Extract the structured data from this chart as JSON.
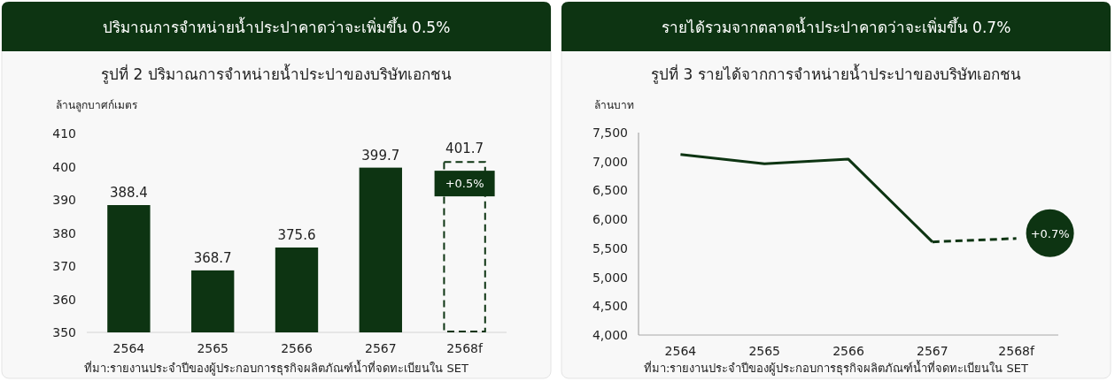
{
  "chart_data": [
    {
      "type": "bar",
      "title": "ปริมาณการจำหน่ายน้ำประปาคาดว่าจะเพิ่มขึ้น 0.5%",
      "subtitle": "รูปที่ 2 ปริมาณการจำหน่ายน้ำประปาของบริษัทเอกชน",
      "ylabel": "ล้านลูกบาศก์เมตร",
      "categories": [
        "2564",
        "2565",
        "2566",
        "2567",
        "2568f"
      ],
      "stacked": true,
      "series": [
        {
          "color": "#0d3412",
          "values": [
            388.4,
            368.7,
            375.6,
            399.7,
            null
          ]
        },
        {
          "color": "#0d3412",
          "line_style": "dashed",
          "values": [
            null,
            null,
            null,
            null,
            401.7
          ]
        }
      ],
      "ylim": [
        350,
        410
      ],
      "yticks": [
        350,
        360,
        370,
        380,
        390,
        400,
        410
      ],
      "data_labels": true,
      "annotations": [
        "+0.5%",
        "ที่มา:รายงานประจำปีของผู้ประกอบการธุรกิจผลิตภัณฑ์น้ำที่จดทะเบียนใน SET"
      ]
    },
    {
      "type": "line",
      "title": "รายได้รวมจากตลาดน้ำประปาคาดว่าจะเพิ่มขึ้น 0.7%",
      "subtitle": "รูปที่ 3 รายได้จากการจำหน่ายน้ำประปาของบริษัทเอกชน",
      "ylabel": "ล้านบาท",
      "categories": [
        "2564",
        "2565",
        "2566",
        "2567",
        "2568f"
      ],
      "series": [
        {
          "color": "#0d3412",
          "values": [
            7120,
            6960,
            7040,
            5610,
            null
          ]
        },
        {
          "color": "#0d3412",
          "line_style": "dashed",
          "values": [
            null,
            null,
            null,
            5610,
            5670
          ]
        }
      ],
      "ylim": [
        4000,
        7500
      ],
      "yticks": [
        {
          "value": 4000,
          "label": "4,000"
        },
        {
          "value": 4500,
          "label": "4,500"
        },
        {
          "value": 5000,
          "label": "5,000"
        },
        {
          "value": 5500,
          "label": "5,500"
        },
        {
          "value": 6000,
          "label": "6,000"
        },
        {
          "value": 6500,
          "label": "6,500"
        },
        {
          "value": 7000,
          "label": "7,000"
        },
        {
          "value": 7500,
          "label": "7,500"
        }
      ],
      "annotations": [
        "+0.7%",
        "ที่มา:รายงานประจำปีของผู้ประกอบการธุรกิจผลิตภัณฑ์น้ำที่จดทะเบียนใน SET"
      ]
    }
  ]
}
